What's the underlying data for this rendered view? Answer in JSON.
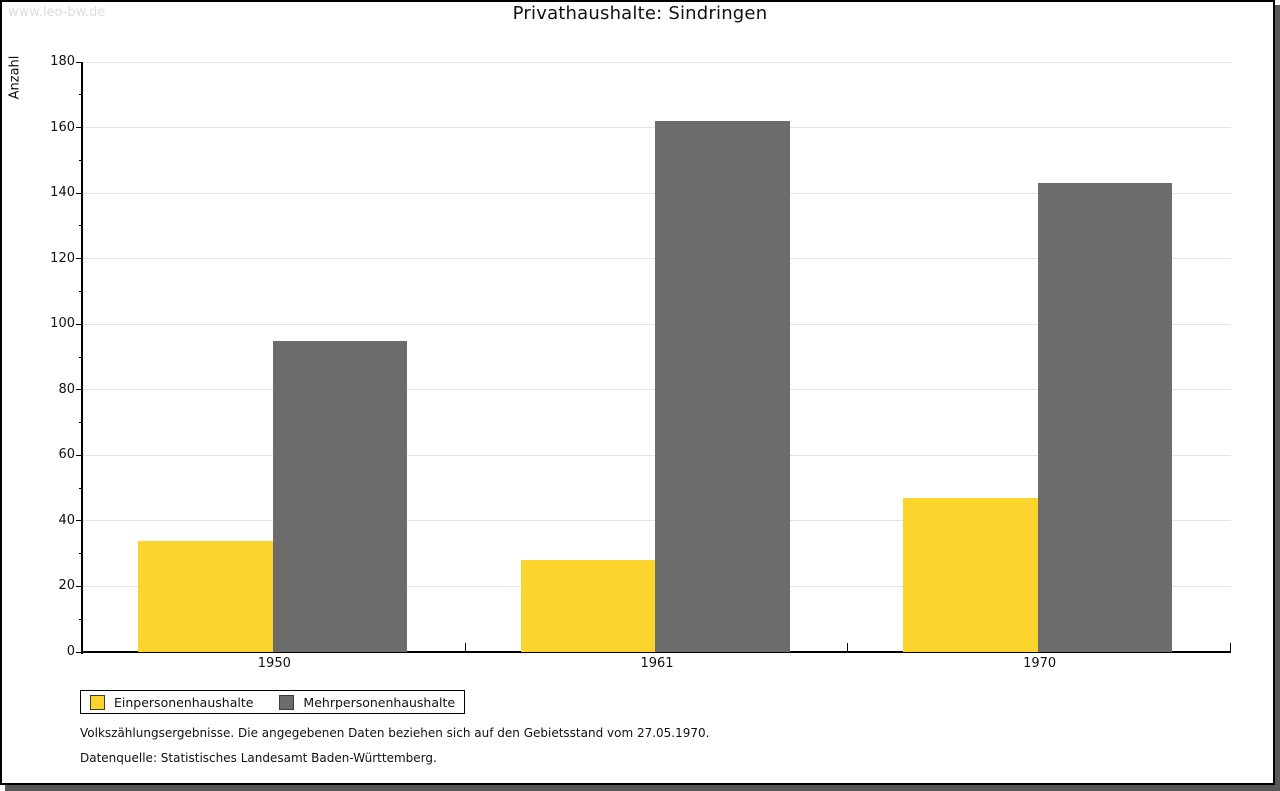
{
  "watermark": "www.leo-bw.de",
  "title": "Privathaushalte: Sindringen",
  "chart_data": {
    "type": "bar",
    "title": "Privathaushalte: Sindringen",
    "xlabel": "",
    "ylabel": "Anzahl",
    "categories": [
      "1950",
      "1961",
      "1970"
    ],
    "series": [
      {
        "name": "Einpersonenhaushalte",
        "color": "#fcd42e",
        "values": [
          34,
          28,
          47
        ]
      },
      {
        "name": "Mehrpersonenhaushalte",
        "color": "#6c6c6c",
        "values": [
          95,
          162,
          143
        ]
      }
    ],
    "ylim": [
      0,
      180
    ],
    "ytick_step": 20,
    "yminor_step": 10,
    "grid": true,
    "legend_position": "bottom-left"
  },
  "footnotes": {
    "line1": "Volkszählungsergebnisse. Die angegebenen Daten beziehen sich auf den Gebietsstand vom 27.05.1970.",
    "line2": "Datenquelle: Statistisches Landesamt Baden-Württemberg."
  }
}
